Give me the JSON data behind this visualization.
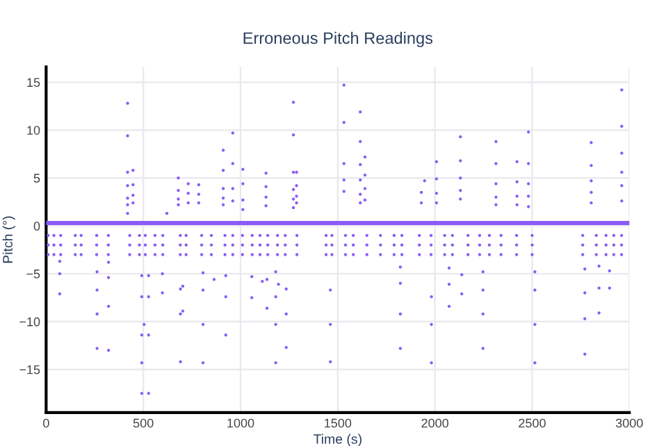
{
  "chart_data": {
    "type": "scatter",
    "title": "Erroneous Pitch Readings",
    "xlabel": "Time (s)",
    "ylabel": "Pitch (°)",
    "xlim": [
      0,
      3000
    ],
    "ylim": [
      -19.5,
      16.6
    ],
    "xticks": [
      0,
      500,
      1000,
      1500,
      2000,
      2500,
      3000
    ],
    "yticks": [
      {
        "value": -15,
        "label": "−15"
      },
      {
        "value": -10,
        "label": "−10"
      },
      {
        "value": -5,
        "label": "−5"
      },
      0,
      5,
      10,
      15
    ],
    "grid": true,
    "legend": false,
    "marker": "circle",
    "series": [
      {
        "color": "#8a5cf6",
        "x": [
          419,
          419,
          419,
          419,
          419,
          419,
          419,
          447,
          447,
          447,
          447,
          621,
          680,
          680,
          680,
          680,
          731,
          731,
          731,
          785,
          785,
          785,
          911,
          911,
          911,
          911,
          911,
          960,
          960,
          960,
          960,
          1012,
          1012,
          1012,
          1012,
          1131,
          1131,
          1131,
          1131,
          1272,
          1272,
          1272,
          1272,
          1272,
          1272,
          1288,
          1288,
          1288,
          1288,
          1532,
          1532,
          1532,
          1532,
          1532,
          1616,
          1616,
          1616,
          1616,
          1616,
          1616,
          1640,
          1640,
          1640,
          1640,
          1930,
          1930,
          1947,
          2008,
          2008,
          2008,
          2008,
          2131,
          2131,
          2131,
          2131,
          2131,
          2314,
          2314,
          2314,
          2314,
          2314,
          2422,
          2422,
          2422,
          2422,
          2481,
          2481,
          2481,
          2481,
          2481,
          2804,
          2804,
          2804,
          2804,
          2804,
          2961,
          2961,
          2961,
          2961,
          2961,
          2961,
          70,
          70,
          70,
          262,
          262,
          262,
          262,
          321,
          321,
          321,
          321,
          492,
          492,
          492,
          492,
          492,
          504,
          527,
          527,
          527,
          527,
          598,
          598,
          691,
          691,
          691,
          703,
          703,
          807,
          807,
          807,
          807,
          864,
          924,
          924,
          924,
          1058,
          1058,
          1112,
          1136,
          1136,
          1181,
          1181,
          1181,
          1181,
          1195,
          1235,
          1235,
          1235,
          1462,
          1462,
          1462,
          1822,
          1822,
          1822,
          1822,
          1982,
          1982,
          1982,
          2073,
          2073,
          2073,
          2138,
          2138,
          2247,
          2247,
          2247,
          2247,
          2514,
          2514,
          2514,
          2514,
          2771,
          2771,
          2771,
          2771,
          2844,
          2844,
          2844,
          2898,
          2898
        ],
        "values": [
          12.8,
          9.4,
          5.6,
          4.2,
          2.9,
          2.2,
          1.3,
          5.8,
          4.3,
          3.2,
          2.4,
          1.3,
          5.0,
          3.7,
          2.8,
          2.2,
          4.4,
          3.4,
          2.4,
          4.3,
          3.3,
          2.4,
          7.9,
          5.8,
          3.9,
          2.9,
          2.2,
          9.7,
          6.5,
          3.9,
          2.6,
          5.9,
          4.4,
          2.7,
          1.7,
          5.5,
          4.1,
          3.0,
          2.1,
          12.9,
          9.5,
          5.6,
          3.8,
          2.8,
          1.9,
          5.6,
          4.2,
          3.1,
          2.4,
          14.7,
          10.8,
          6.5,
          4.8,
          3.6,
          11.9,
          8.8,
          6.4,
          4.8,
          3.3,
          2.4,
          7.2,
          5.3,
          3.9,
          2.7,
          3.5,
          2.4,
          4.7,
          6.7,
          4.9,
          3.4,
          2.4,
          9.3,
          6.8,
          5.0,
          3.7,
          2.8,
          8.8,
          6.5,
          4.4,
          3.0,
          2.2,
          6.7,
          4.6,
          3.1,
          2.2,
          9.8,
          6.5,
          4.4,
          3.1,
          2.0,
          8.7,
          6.3,
          4.7,
          3.5,
          2.4,
          14.2,
          10.4,
          7.6,
          5.6,
          4.2,
          2.6,
          -3.7,
          -5.0,
          -7.1,
          -4.8,
          -6.7,
          -9.2,
          -12.8,
          -3.8,
          -5.4,
          -8.4,
          -13.0,
          -5.2,
          -7.4,
          -11.4,
          -14.3,
          -17.5,
          -10.3,
          -5.2,
          -7.4,
          -11.4,
          -17.5,
          -5.0,
          -7.0,
          -6.6,
          -9.2,
          -14.2,
          -6.3,
          -8.9,
          -4.9,
          -6.7,
          -10.3,
          -14.3,
          -5.6,
          -5.2,
          -7.4,
          -11.4,
          -5.3,
          -7.5,
          -5.8,
          -5.6,
          -8.6,
          -4.8,
          -7.4,
          -10.3,
          -14.3,
          -6.1,
          -6.6,
          -9.2,
          -12.7,
          -6.7,
          -10.3,
          -14.2,
          -4.3,
          -6.0,
          -9.2,
          -12.8,
          -7.4,
          -10.3,
          -14.3,
          -4.4,
          -6.1,
          -8.4,
          -5.1,
          -7.1,
          -4.8,
          -6.7,
          -9.2,
          -12.8,
          -4.8,
          -6.7,
          -10.3,
          -14.3,
          -4.5,
          -7.0,
          -9.7,
          -13.4,
          -4.2,
          -6.5,
          -9.1,
          -4.7,
          -6.5
        ]
      },
      {
        "color": "#8a5cf6",
        "x": [
          10,
          40,
          75,
          150,
          180,
          260,
          320,
          430,
          480,
          510,
          560,
          600,
          690,
          720,
          800,
          850,
          920,
          960,
          1010,
          1060,
          1100,
          1140,
          1190,
          1230,
          1290,
          1440,
          1470,
          1540,
          1580,
          1650,
          1720,
          1790,
          1830,
          1920,
          1980,
          2050,
          2090,
          2170,
          2230,
          2280,
          2340,
          2420,
          2500,
          2760,
          2830,
          2880,
          2920,
          2960
        ],
        "values": [
          -1.0,
          -1.0,
          -1.0,
          -1.0,
          -1.0,
          -1.0,
          -1.0,
          -1.0,
          -1.0,
          -1.0,
          -1.0,
          -1.0,
          -1.0,
          -1.0,
          -1.0,
          -1.0,
          -1.0,
          -1.0,
          -1.0,
          -1.0,
          -1.0,
          -1.0,
          -1.0,
          -1.0,
          -1.0,
          -1.0,
          -1.0,
          -1.0,
          -1.0,
          -1.0,
          -1.0,
          -1.0,
          -1.0,
          -1.0,
          -1.0,
          -1.0,
          -1.0,
          -1.0,
          -1.0,
          -1.0,
          -1.0,
          -1.0,
          -1.0,
          -1.0,
          -1.0,
          -1.0,
          -1.0,
          -1.0
        ]
      },
      {
        "color": "#8a5cf6",
        "x": [
          10,
          40,
          75,
          150,
          180,
          260,
          320,
          430,
          480,
          510,
          560,
          600,
          690,
          720,
          800,
          850,
          920,
          960,
          1010,
          1060,
          1100,
          1140,
          1190,
          1230,
          1290,
          1440,
          1470,
          1540,
          1580,
          1650,
          1720,
          1790,
          1830,
          1920,
          1980,
          2050,
          2090,
          2170,
          2230,
          2280,
          2340,
          2420,
          2500,
          2760,
          2830,
          2880,
          2920,
          2960
        ],
        "values": [
          -2.0,
          -2.0,
          -2.0,
          -2.0,
          -2.0,
          -2.0,
          -2.0,
          -2.0,
          -2.0,
          -2.0,
          -2.0,
          -2.0,
          -2.0,
          -2.0,
          -2.0,
          -2.0,
          -2.0,
          -2.0,
          -2.0,
          -2.0,
          -2.0,
          -2.0,
          -2.0,
          -2.0,
          -2.0,
          -2.0,
          -2.0,
          -2.0,
          -2.0,
          -2.0,
          -2.0,
          -2.0,
          -2.0,
          -2.0,
          -2.0,
          -2.0,
          -2.0,
          -2.0,
          -2.0,
          -2.0,
          -2.0,
          -2.0,
          -2.0,
          -2.0,
          -2.0,
          -2.0,
          -2.0,
          -2.0
        ]
      },
      {
        "color": "#8a5cf6",
        "x": [
          10,
          40,
          75,
          150,
          180,
          260,
          320,
          430,
          480,
          510,
          560,
          600,
          690,
          720,
          800,
          850,
          920,
          960,
          1010,
          1060,
          1100,
          1140,
          1190,
          1230,
          1290,
          1440,
          1470,
          1540,
          1580,
          1650,
          1720,
          1790,
          1830,
          1920,
          1980,
          2050,
          2090,
          2170,
          2230,
          2280,
          2340,
          2420,
          2500,
          2760,
          2830,
          2880,
          2920,
          2960
        ],
        "values": [
          -3.0,
          -3.0,
          -3.0,
          -3.0,
          -3.0,
          -3.0,
          -3.0,
          -3.0,
          -3.0,
          -3.0,
          -3.0,
          -3.0,
          -3.0,
          -3.0,
          -3.0,
          -3.0,
          -3.0,
          -3.0,
          -3.0,
          -3.0,
          -3.0,
          -3.0,
          -3.0,
          -3.0,
          -3.0,
          -3.0,
          -3.0,
          -3.0,
          -3.0,
          -3.0,
          -3.0,
          -3.0,
          -3.0,
          -3.0,
          -3.0,
          -3.0,
          -3.0,
          -3.0,
          -3.0,
          -3.0,
          -3.0,
          -3.0,
          -3.0,
          -3.0,
          -3.0,
          -3.0,
          -3.0,
          -3.0
        ]
      },
      {
        "type": "line",
        "marker": "none",
        "color": "#8a5cf6",
        "x": [
          0,
          3000
        ],
        "values": [
          0.3,
          0.3
        ]
      }
    ]
  }
}
